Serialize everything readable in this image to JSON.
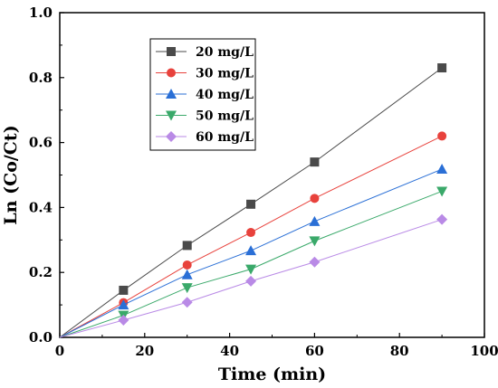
{
  "chart_data": {
    "type": "line",
    "title": "",
    "xlabel": "Time (min)",
    "ylabel": "Ln (Co/Ct)",
    "xlim": [
      0,
      100
    ],
    "ylim": [
      0.0,
      1.0
    ],
    "x_ticks": [
      "0",
      "20",
      "40",
      "60",
      "80",
      "100"
    ],
    "y_ticks": [
      "0.0",
      "0.2",
      "0.4",
      "0.6",
      "0.8",
      "1.0"
    ],
    "grid": false,
    "legend_position": "top-left",
    "x": [
      0,
      15,
      30,
      45,
      60,
      90
    ],
    "series": [
      {
        "name": "20 mg/L",
        "color": "#4a4a4a",
        "marker": "square",
        "values": [
          0,
          0.145,
          0.283,
          0.41,
          0.54,
          0.83
        ]
      },
      {
        "name": "30 mg/L",
        "color": "#e8423c",
        "marker": "circle",
        "values": [
          0,
          0.107,
          0.223,
          0.323,
          0.428,
          0.62
        ]
      },
      {
        "name": "40 mg/L",
        "color": "#2a6fd6",
        "marker": "triangle-up",
        "values": [
          0,
          0.1,
          0.193,
          0.267,
          0.357,
          0.518
        ]
      },
      {
        "name": "50 mg/L",
        "color": "#3aa96a",
        "marker": "triangle-down",
        "values": [
          0,
          0.068,
          0.153,
          0.21,
          0.297,
          0.45
        ]
      },
      {
        "name": "60 mg/L",
        "color": "#b98ae6",
        "marker": "diamond",
        "values": [
          0,
          0.053,
          0.108,
          0.173,
          0.232,
          0.363
        ]
      }
    ]
  }
}
